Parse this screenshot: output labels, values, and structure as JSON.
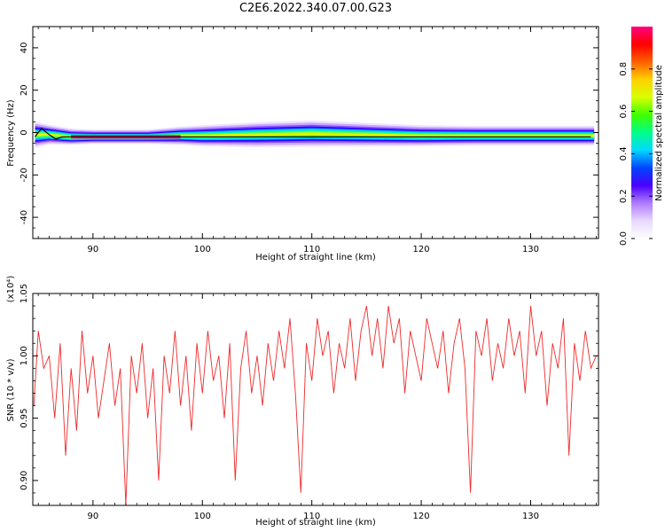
{
  "title": "C2E6.2022.340.07.00.G23",
  "chart_data": [
    {
      "type": "heatmap",
      "xlabel": "Height of straight line (km)",
      "ylabel": "Frequency (Hz)",
      "xlim": [
        84.5,
        136.2
      ],
      "ylim": [
        -50,
        50
      ],
      "xticks": [
        90,
        100,
        110,
        120,
        130
      ],
      "yticks": [
        40,
        20,
        0,
        -20,
        -40
      ],
      "grid": false,
      "colorbar": {
        "label": "Normalized spectral amplitude",
        "ticks": [
          0.0,
          0.2,
          0.4,
          0.6,
          0.8
        ],
        "range": [
          0,
          1
        ],
        "colors": [
          "#ffffff",
          "#e8d8ff",
          "#b07cff",
          "#4b00ff",
          "#0044ff",
          "#00d8ff",
          "#00ff88",
          "#40ff00",
          "#d8ff00",
          "#ffd000",
          "#ff6000",
          "#ff0000",
          "#ff0080"
        ]
      },
      "line": {
        "description": "peak frequency track",
        "x": [
          84.7,
          85.3,
          86.0,
          86.6,
          87.2,
          90,
          95,
          100,
          105,
          110,
          115,
          120,
          125,
          130,
          135.5
        ],
        "y": [
          -2,
          2,
          -1,
          -3,
          -2,
          -2,
          -2,
          -2,
          -2,
          -2,
          -2,
          -2,
          -2,
          -2,
          -2
        ]
      },
      "band": {
        "x": [
          84.7,
          86,
          88,
          90,
          95,
          98,
          100,
          105,
          110,
          115,
          120,
          125,
          130,
          135.8
        ],
        "center": [
          -1,
          -1,
          -2,
          -2,
          -2,
          -1.5,
          -1.5,
          -1,
          -0.5,
          -1,
          -1.5,
          -1.5,
          -1.5,
          -1.5
        ],
        "halfwidth": [
          4,
          3,
          2.5,
          2.2,
          2.2,
          2.8,
          3.2,
          3.8,
          4.0,
          3.6,
          3.2,
          3.0,
          3.0,
          3.0
        ]
      }
    },
    {
      "type": "line",
      "xlabel": "Height of straight line (km)",
      "ylabel": "SNR (10 * v/v)",
      "scale_label": "(x10⁴)",
      "xlim": [
        84.5,
        136.2
      ],
      "ylim": [
        0.88,
        1.05
      ],
      "xticks": [
        90,
        100,
        110,
        120,
        130
      ],
      "yticks": [
        0.9,
        0.95,
        1.0,
        1.05
      ],
      "ytick_labels": [
        "0.90",
        "0.95",
        "1.00",
        "1.05"
      ],
      "color": "#ee2a2a",
      "x": [
        84.6,
        85.0,
        85.5,
        86.0,
        86.5,
        87.0,
        87.5,
        88.0,
        88.5,
        89.0,
        89.5,
        90.0,
        90.5,
        91.0,
        91.5,
        92.0,
        92.5,
        93.0,
        93.5,
        94.0,
        94.5,
        95.0,
        95.5,
        96.0,
        96.5,
        97.0,
        97.5,
        98.0,
        98.5,
        99.0,
        99.5,
        100.0,
        100.5,
        101.0,
        101.5,
        102.0,
        102.5,
        103.0,
        103.5,
        104.0,
        104.5,
        105.0,
        105.5,
        106.0,
        106.5,
        107.0,
        107.5,
        108.0,
        108.5,
        109.0,
        109.5,
        110.0,
        110.5,
        111.0,
        111.5,
        112.0,
        112.5,
        113.0,
        113.5,
        114.0,
        114.5,
        115.0,
        115.5,
        116.0,
        116.5,
        117.0,
        117.5,
        118.0,
        118.5,
        119.0,
        119.5,
        120.0,
        120.5,
        121.0,
        121.5,
        122.0,
        122.5,
        123.0,
        123.5,
        124.0,
        124.5,
        125.0,
        125.5,
        126.0,
        126.5,
        127.0,
        127.5,
        128.0,
        128.5,
        129.0,
        129.5,
        130.0,
        130.5,
        131.0,
        131.5,
        132.0,
        132.5,
        133.0,
        133.5,
        134.0,
        134.5,
        135.0,
        135.5,
        136.0
      ],
      "y": [
        0.96,
        1.02,
        0.99,
        1.0,
        0.95,
        1.01,
        0.92,
        0.99,
        0.94,
        1.02,
        0.97,
        1.0,
        0.95,
        0.98,
        1.01,
        0.96,
        0.99,
        0.88,
        1.0,
        0.97,
        1.01,
        0.95,
        0.99,
        0.9,
        1.0,
        0.97,
        1.02,
        0.96,
        1.0,
        0.94,
        1.01,
        0.97,
        1.02,
        0.98,
        1.0,
        0.95,
        1.01,
        0.9,
        0.99,
        1.02,
        0.97,
        1.0,
        0.96,
        1.01,
        0.98,
        1.02,
        0.99,
        1.03,
        0.97,
        0.89,
        1.01,
        0.98,
        1.03,
        1.0,
        1.02,
        0.97,
        1.01,
        0.99,
        1.03,
        0.98,
        1.02,
        1.04,
        1.0,
        1.03,
        0.99,
        1.04,
        1.01,
        1.03,
        0.97,
        1.02,
        1.0,
        0.98,
        1.03,
        1.01,
        0.99,
        1.02,
        0.97,
        1.01,
        1.03,
        0.99,
        0.89,
        1.02,
        1.0,
        1.03,
        0.98,
        1.01,
        0.99,
        1.03,
        1.0,
        1.02,
        0.97,
        1.04,
        1.0,
        1.02,
        0.96,
        1.01,
        0.99,
        1.03,
        0.92,
        1.01,
        0.98,
        1.02,
        0.99,
        1.0
      ]
    }
  ]
}
